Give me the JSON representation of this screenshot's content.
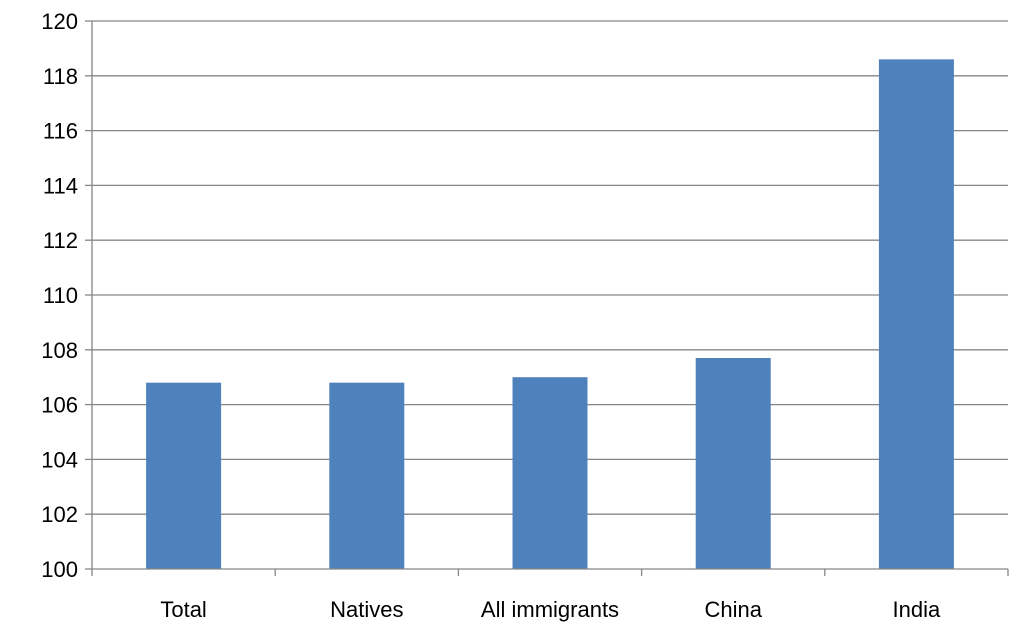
{
  "chart_data": {
    "type": "bar",
    "categories": [
      "Total",
      "Natives",
      "All immigrants",
      "China",
      "India"
    ],
    "values": [
      106.8,
      106.8,
      107.0,
      107.7,
      118.6
    ],
    "ylim": [
      100,
      120
    ],
    "yticks": [
      "100",
      "102",
      "104",
      "106",
      "108",
      "110",
      "112",
      "114",
      "116",
      "118",
      "120"
    ],
    "grid": true,
    "legend": "none",
    "bar_color": "#4f81bd",
    "grid_color": "#868686"
  }
}
